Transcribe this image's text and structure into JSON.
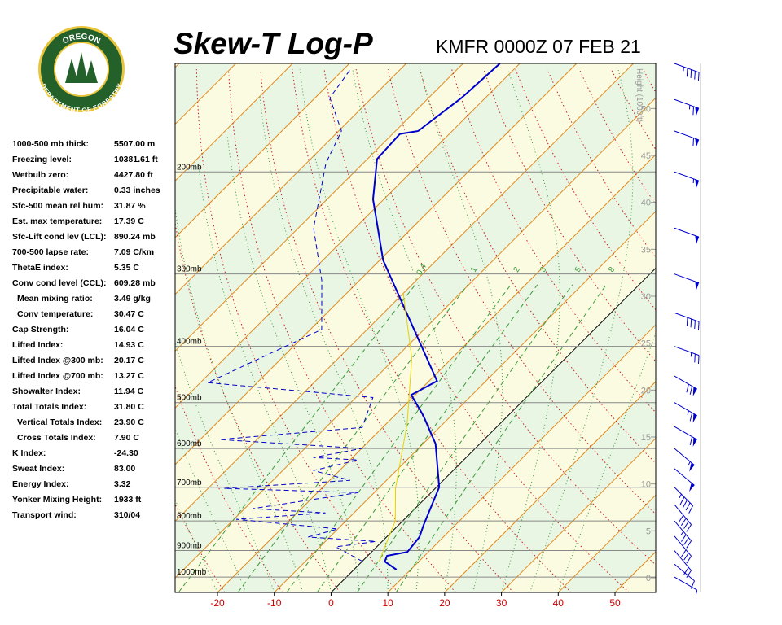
{
  "header": {
    "title": "Skew-T Log-P",
    "station": "KMFR 0000Z 07 FEB 21",
    "logo_top": "OREGON",
    "logo_bottom": "DEPARTMENT OF FORESTRY"
  },
  "indices": [
    [
      "1000-500 mb thick:",
      "5507.00 m"
    ],
    [
      "Freezing level:",
      "10381.61 ft"
    ],
    [
      "Wetbulb zero:",
      "4427.80 ft"
    ],
    [
      "Precipitable water:",
      "0.33 inches"
    ],
    [
      "Sfc-500 mean rel hum:",
      "31.87 %"
    ],
    [
      "Est. max temperature:",
      "17.39 C"
    ],
    [
      "Sfc-Lift cond lev (LCL):",
      "890.24 mb"
    ],
    [
      "700-500 lapse rate:",
      "7.09 C/km"
    ],
    [
      "ThetaE index:",
      "5.35 C"
    ],
    [
      "Conv cond level (CCL):",
      "609.28 mb"
    ],
    [
      "Mean mixing ratio:",
      "3.49 g/kg"
    ],
    [
      "Conv temperature:",
      "30.47 C"
    ],
    [
      "Cap Strength:",
      "16.04 C"
    ],
    [
      "Lifted Index:",
      "14.93 C"
    ],
    [
      "Lifted Index @300 mb:",
      "20.17 C"
    ],
    [
      "Lifted Index @700 mb:",
      "13.27 C"
    ],
    [
      "Showalter Index:",
      "11.94 C"
    ],
    [
      "Total Totals Index:",
      "31.80 C"
    ],
    [
      "Vertical Totals Index:",
      "23.90 C"
    ],
    [
      "Cross Totals Index:",
      "7.90 C"
    ],
    [
      "K Index:",
      "-24.30"
    ],
    [
      "Sweat Index:",
      "83.00"
    ],
    [
      "Energy Index:",
      "3.32"
    ],
    [
      "Yonker Mixing Height:",
      "1933 ft"
    ],
    [
      "Transport wind:",
      "310/04"
    ]
  ],
  "chart_data": {
    "type": "skew-t",
    "xlim": [
      -27.46,
      57.17
    ],
    "xticks": [
      -20,
      -10,
      0,
      10,
      20,
      30,
      40,
      50
    ],
    "ylim": [
      1063,
      130
    ],
    "log_y": true,
    "yticks": [
      {
        "value": 1000,
        "label": "1000mb"
      },
      {
        "value": 900,
        "label": "900mb"
      },
      {
        "value": 800,
        "label": "800mb"
      },
      {
        "value": 700,
        "label": "700mb"
      },
      {
        "value": 600,
        "label": "600mb"
      },
      {
        "value": 500,
        "label": "500mb"
      },
      {
        "value": 400,
        "label": "400mb"
      },
      {
        "value": 300,
        "label": "300mb"
      },
      {
        "value": 200,
        "label": "200mb"
      }
    ],
    "height_label": "Height (1000ft)",
    "hlim": [
      -1.56,
      54.8
    ],
    "hticks": [
      0,
      5,
      10,
      15,
      20,
      25,
      30,
      35,
      40,
      45,
      50
    ],
    "mixing_ratios": [
      0.4,
      1,
      2,
      3,
      5,
      8
    ],
    "series": [
      {
        "color": "#0000cc",
        "style": "solid",
        "pressure": [
          971,
          940,
          919,
          905,
          853,
          813,
          700,
          589,
          526,
          485,
          459,
          284,
          223,
          190,
          172,
          170,
          149,
          130
        ],
        "values": [
          7.5,
          4.0,
          3.4,
          6.3,
          5.8,
          4.4,
          0.5,
          -7.8,
          -15,
          -20.7,
          -18.6,
          -49.4,
          -61.9,
          -68.3,
          -68.7,
          -66,
          -64.2,
          -63.5
        ]
      },
      {
        "color": "#0000cc",
        "style": "dashed",
        "pressure": [
          940,
          887,
          868,
          853,
          826,
          795,
          775,
          762,
          715,
          703,
          681,
          655,
          628,
          622,
          600,
          579,
          552,
          490,
          462,
          374,
          308,
          250,
          193,
          170,
          149,
          133
        ],
        "values": [
          0.1,
          -7.2,
          -1.1,
          -13.8,
          -10,
          -29.6,
          -15,
          -28.6,
          -12.8,
          -37.2,
          -16.4,
          -24.6,
          -18.6,
          -26.9,
          -20,
          -46.6,
          -23.6,
          -27,
          -58.7,
          -48,
          -56.6,
          -67.3,
          -76.6,
          -79.5,
          -87.4,
          -88.8
        ]
      },
      {
        "color": "#e6d200",
        "style": "solid",
        "pressure": [
          940,
          800,
          703,
          543,
          419,
          324
        ],
        "values": [
          3,
          -1.3,
          -7,
          -16.4,
          -27.1,
          -40.0
        ]
      }
    ],
    "winds": {
      "pressure": [
        1000,
        950,
        900,
        850,
        800,
        750,
        700,
        650,
        600,
        550,
        500,
        450,
        400,
        350,
        300,
        250,
        200,
        170,
        150,
        130
      ],
      "direction": [
        300,
        310,
        320,
        320,
        320,
        320,
        315,
        310,
        310,
        300,
        300,
        300,
        290,
        290,
        290,
        290,
        290,
        290,
        290,
        290
      ],
      "speed": [
        5,
        10,
        20,
        30,
        35,
        40,
        45,
        50,
        55,
        60,
        65,
        70,
        25,
        40,
        50,
        50,
        55,
        60,
        65,
        45
      ]
    }
  }
}
